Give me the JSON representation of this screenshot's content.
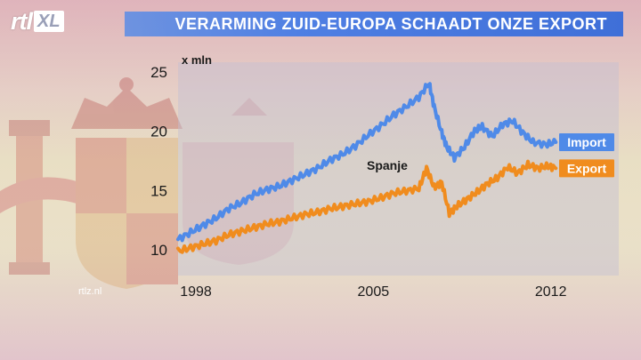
{
  "header": {
    "logo_text": "rtl",
    "logo_badge": "XL",
    "title": "VERARMING ZUID-EUROPA SCHAADT ONZE EXPORT"
  },
  "footer": {
    "site": "rtlz.nl"
  },
  "colors": {
    "import": "#4f8ae8",
    "export": "#f08c1e",
    "title_bar": "#4f7fe3",
    "axis_text": "#1a1a1a"
  },
  "chart_data": {
    "type": "line",
    "unit_label": "x mln",
    "annotation": "Spanje",
    "xlim": [
      1998,
      2013.1
    ],
    "ylim": [
      8.5,
      25
    ],
    "x_ticks": [
      1998,
      2005,
      2012
    ],
    "y_ticks": [
      10,
      15,
      20,
      25
    ],
    "grid": false,
    "legend_placement": "right, labels at line ends",
    "series": [
      {
        "name": "Import",
        "color": "#4f8ae8",
        "points": [
          [
            1998.0,
            10.8
          ],
          [
            1998.5,
            11.4
          ],
          [
            1999.0,
            12.0
          ],
          [
            1999.5,
            12.6
          ],
          [
            2000.0,
            13.4
          ],
          [
            2000.5,
            13.9
          ],
          [
            2001.0,
            14.6
          ],
          [
            2001.5,
            15.0
          ],
          [
            2002.0,
            15.3
          ],
          [
            2002.5,
            15.8
          ],
          [
            2003.0,
            16.3
          ],
          [
            2003.5,
            16.8
          ],
          [
            2004.0,
            17.5
          ],
          [
            2004.5,
            18.0
          ],
          [
            2005.0,
            18.7
          ],
          [
            2005.5,
            19.6
          ],
          [
            2006.0,
            20.4
          ],
          [
            2006.5,
            21.3
          ],
          [
            2007.0,
            22.0
          ],
          [
            2007.5,
            22.8
          ],
          [
            2007.9,
            24.0
          ],
          [
            2008.1,
            22.0
          ],
          [
            2008.4,
            19.8
          ],
          [
            2008.6,
            18.6
          ],
          [
            2008.9,
            17.7
          ],
          [
            2009.3,
            18.6
          ],
          [
            2009.7,
            20.0
          ],
          [
            2010.0,
            20.3
          ],
          [
            2010.4,
            19.5
          ],
          [
            2010.8,
            20.5
          ],
          [
            2011.2,
            20.8
          ],
          [
            2011.6,
            19.8
          ],
          [
            2012.0,
            19.0
          ],
          [
            2012.5,
            18.8
          ],
          [
            2012.9,
            19.0
          ]
        ]
      },
      {
        "name": "Export",
        "color": "#f08c1e",
        "points": [
          [
            1998.0,
            9.8
          ],
          [
            1998.5,
            10.1
          ],
          [
            1999.0,
            10.4
          ],
          [
            1999.5,
            10.7
          ],
          [
            2000.0,
            11.2
          ],
          [
            2000.5,
            11.5
          ],
          [
            2001.0,
            11.8
          ],
          [
            2001.5,
            12.1
          ],
          [
            2002.0,
            12.3
          ],
          [
            2002.5,
            12.6
          ],
          [
            2003.0,
            12.9
          ],
          [
            2003.5,
            13.1
          ],
          [
            2004.0,
            13.4
          ],
          [
            2004.5,
            13.6
          ],
          [
            2005.0,
            13.8
          ],
          [
            2005.5,
            14.0
          ],
          [
            2006.0,
            14.3
          ],
          [
            2006.5,
            14.7
          ],
          [
            2007.0,
            14.9
          ],
          [
            2007.5,
            15.1
          ],
          [
            2007.8,
            16.8
          ],
          [
            2008.1,
            15.2
          ],
          [
            2008.4,
            15.6
          ],
          [
            2008.7,
            13.0
          ],
          [
            2009.0,
            13.6
          ],
          [
            2009.4,
            14.2
          ],
          [
            2009.8,
            14.8
          ],
          [
            2010.2,
            15.5
          ],
          [
            2010.6,
            16.0
          ],
          [
            2011.0,
            16.9
          ],
          [
            2011.4,
            16.4
          ],
          [
            2011.8,
            17.1
          ],
          [
            2012.2,
            16.8
          ],
          [
            2012.6,
            17.0
          ],
          [
            2012.9,
            16.8
          ]
        ]
      }
    ]
  }
}
